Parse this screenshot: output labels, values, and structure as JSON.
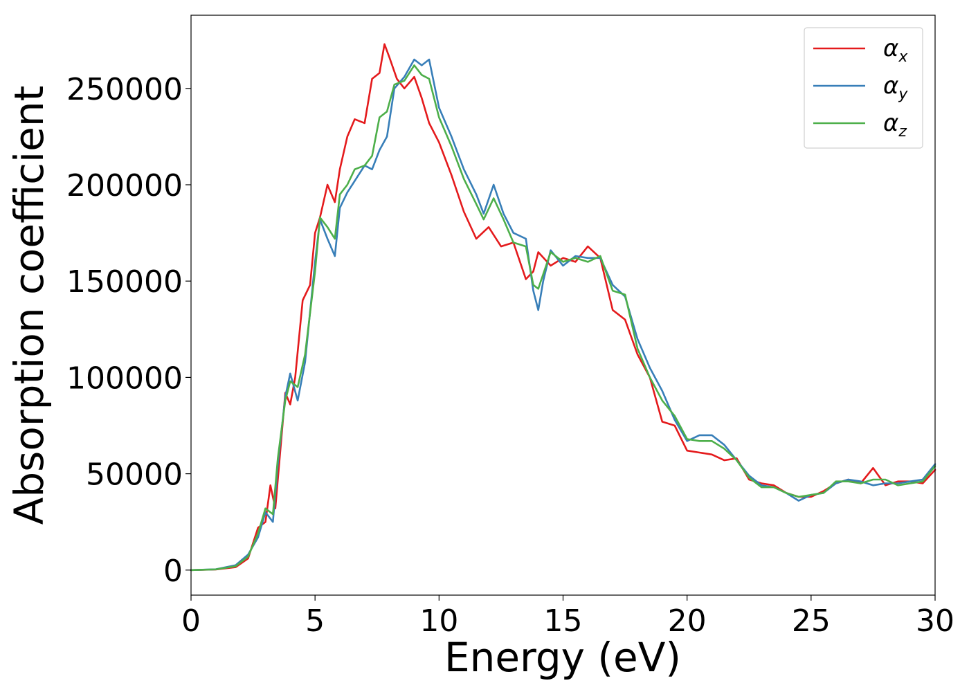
{
  "chart_data": {
    "type": "line",
    "title": "",
    "xlabel": "Energy (eV)",
    "ylabel": "Absorption coefficient",
    "xlim": [
      0,
      30
    ],
    "ylim": [
      -13000,
      288000
    ],
    "xticks": [
      0,
      5,
      10,
      15,
      20,
      25,
      30
    ],
    "yticks": [
      0,
      50000,
      100000,
      150000,
      200000,
      250000
    ],
    "grid": false,
    "legend_position": "top-right",
    "series": [
      {
        "name": "α",
        "subscript": "x",
        "color": "#e41a1c",
        "x": [
          0,
          1,
          1.8,
          2.3,
          2.7,
          3.0,
          3.2,
          3.4,
          3.6,
          3.8,
          4.0,
          4.2,
          4.5,
          4.8,
          5.0,
          5.2,
          5.5,
          5.8,
          6.0,
          6.3,
          6.6,
          7.0,
          7.3,
          7.6,
          7.8,
          8.0,
          8.3,
          8.6,
          9.0,
          9.3,
          9.6,
          10.0,
          10.5,
          11.0,
          11.5,
          12.0,
          12.5,
          13.0,
          13.5,
          13.8,
          14.0,
          14.5,
          15.0,
          15.5,
          16.0,
          16.5,
          17.0,
          17.5,
          18.0,
          18.5,
          19.0,
          19.5,
          20.0,
          20.5,
          21.0,
          21.5,
          22.0,
          22.5,
          23.0,
          23.5,
          24.0,
          24.5,
          25.0,
          25.5,
          26.0,
          26.5,
          27.0,
          27.5,
          28.0,
          28.5,
          29.0,
          29.5,
          30.0
        ],
        "y": [
          0,
          300,
          1500,
          6000,
          22000,
          25000,
          44000,
          32000,
          62000,
          92000,
          86000,
          100000,
          140000,
          148000,
          175000,
          183000,
          200000,
          191000,
          208000,
          225000,
          234000,
          232000,
          255000,
          258000,
          273000,
          266000,
          255000,
          250000,
          256000,
          245000,
          232000,
          222000,
          205000,
          186000,
          172000,
          178000,
          168000,
          170000,
          151000,
          155000,
          165000,
          158000,
          162000,
          160000,
          168000,
          162000,
          135000,
          130000,
          112000,
          100000,
          77000,
          75000,
          62000,
          61000,
          60000,
          57000,
          58000,
          47000,
          45000,
          44000,
          40000,
          38000,
          38000,
          41000,
          45000,
          47000,
          45000,
          53000,
          44000,
          46000,
          46000,
          45000,
          52000
        ]
      },
      {
        "name": "α",
        "subscript": "y",
        "color": "#377eb8",
        "x": [
          0,
          1,
          1.8,
          2.3,
          2.7,
          3.0,
          3.3,
          3.5,
          3.8,
          4.0,
          4.3,
          4.6,
          5.0,
          5.2,
          5.5,
          5.8,
          6.0,
          6.3,
          6.6,
          7.0,
          7.3,
          7.6,
          7.9,
          8.2,
          8.6,
          9.0,
          9.3,
          9.6,
          10.0,
          10.5,
          11.0,
          11.5,
          11.8,
          12.2,
          12.6,
          13.0,
          13.5,
          13.8,
          14.0,
          14.2,
          14.5,
          15.0,
          15.5,
          16.0,
          16.5,
          17.0,
          17.5,
          18.0,
          18.5,
          19.0,
          19.5,
          20.0,
          20.5,
          21.0,
          21.5,
          22.0,
          22.5,
          23.0,
          23.5,
          24.0,
          24.5,
          25.0,
          25.5,
          26.0,
          26.5,
          27.0,
          27.5,
          28.0,
          28.5,
          29.0,
          29.5,
          30.0
        ],
        "y": [
          0,
          400,
          2500,
          8000,
          17000,
          30000,
          25000,
          55000,
          90000,
          102000,
          88000,
          108000,
          160000,
          182000,
          172000,
          163000,
          188000,
          196000,
          202000,
          210000,
          208000,
          218000,
          225000,
          250000,
          256000,
          265000,
          262000,
          265000,
          240000,
          225000,
          208000,
          195000,
          185000,
          200000,
          185000,
          175000,
          172000,
          145000,
          135000,
          150000,
          166000,
          158000,
          163000,
          162000,
          162000,
          148000,
          142000,
          120000,
          105000,
          93000,
          78000,
          67000,
          70000,
          70000,
          65000,
          57000,
          49000,
          44000,
          43000,
          40000,
          36000,
          39000,
          40000,
          45000,
          47000,
          46000,
          44000,
          45000,
          45000,
          46000,
          47000,
          55000
        ]
      },
      {
        "name": "α",
        "subscript": "z",
        "color": "#4daf4a",
        "x": [
          0,
          1,
          1.8,
          2.3,
          2.7,
          3.0,
          3.3,
          3.5,
          3.8,
          4.0,
          4.3,
          4.6,
          5.0,
          5.2,
          5.5,
          5.8,
          6.0,
          6.3,
          6.6,
          7.0,
          7.3,
          7.6,
          7.9,
          8.2,
          8.6,
          9.0,
          9.3,
          9.6,
          10.0,
          10.5,
          11.0,
          11.5,
          11.8,
          12.2,
          12.6,
          13.0,
          13.5,
          13.8,
          14.0,
          14.5,
          15.0,
          15.5,
          16.0,
          16.5,
          17.0,
          17.5,
          18.0,
          18.5,
          19.0,
          19.5,
          20.0,
          20.5,
          21.0,
          21.5,
          22.0,
          22.5,
          23.0,
          23.5,
          24.0,
          24.5,
          25.0,
          25.5,
          26.0,
          26.5,
          27.0,
          27.5,
          28.0,
          28.5,
          29.0,
          29.5,
          30.0
        ],
        "y": [
          0,
          350,
          2000,
          7000,
          19000,
          32000,
          29000,
          58000,
          88000,
          98000,
          95000,
          112000,
          155000,
          183000,
          178000,
          172000,
          195000,
          200000,
          208000,
          210000,
          215000,
          235000,
          238000,
          252000,
          254000,
          262000,
          257000,
          255000,
          235000,
          220000,
          203000,
          190000,
          182000,
          193000,
          182000,
          170000,
          168000,
          148000,
          146000,
          165000,
          160000,
          162000,
          160000,
          163000,
          145000,
          143000,
          115000,
          100000,
          88000,
          80000,
          68000,
          67000,
          67000,
          63000,
          57000,
          48000,
          43000,
          43000,
          40000,
          38000,
          39000,
          40000,
          46000,
          46000,
          45000,
          47000,
          47000,
          44000,
          45000,
          46000,
          54000
        ]
      }
    ]
  }
}
